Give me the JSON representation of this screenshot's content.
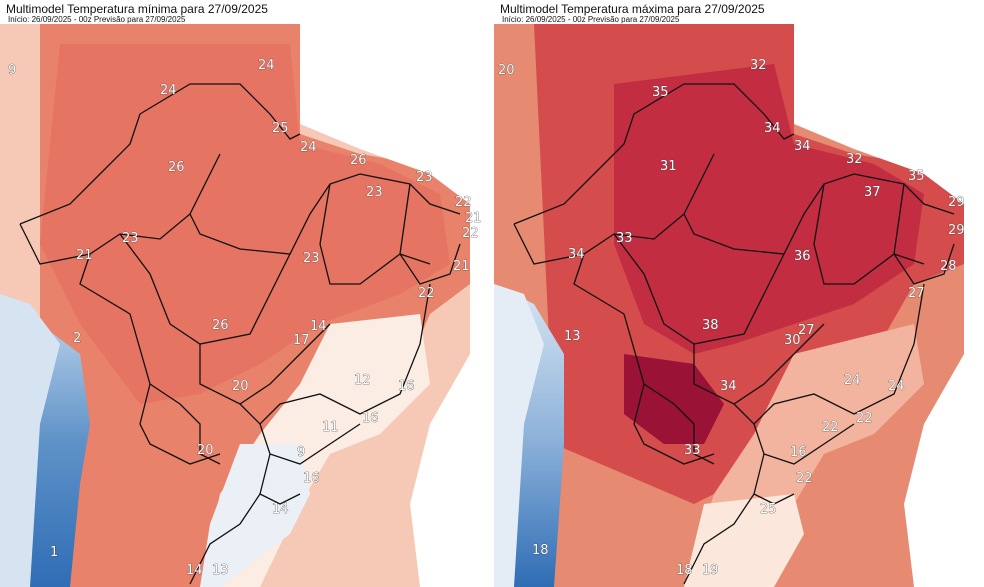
{
  "panels": [
    {
      "id": "min",
      "title": "Multimodel Temperatura mínima para 27/09/2025",
      "subtitle": "Início: 26/09/2025 - 00z  Previsão para 27/09/2025",
      "labels": [
        "9",
        "24",
        "24",
        "25",
        "24",
        "26",
        "26",
        "23",
        "23",
        "22",
        "21",
        "22",
        "23",
        "21",
        "21",
        "23",
        "22",
        "2",
        "14",
        "17",
        "26",
        "12",
        "16",
        "20",
        "11",
        "16",
        "20",
        "9",
        "16",
        "14",
        "1",
        "14",
        "13"
      ]
    },
    {
      "id": "max",
      "title": "Multimodel Temperatura máxima para 27/09/2025",
      "subtitle": "Início: 26/09/2025 - 00z  Previsão para 27/09/2025",
      "labels": [
        "20",
        "32",
        "35",
        "34",
        "34",
        "31",
        "32",
        "35",
        "37",
        "29",
        "29",
        "34",
        "33",
        "36",
        "28",
        "27",
        "13",
        "27",
        "30",
        "38",
        "34",
        "24",
        "24",
        "22",
        "22",
        "33",
        "16",
        "22",
        "25",
        "18",
        "18",
        "19"
      ]
    }
  ],
  "colors": {
    "cold": "#2f6db5",
    "cool": "#d8e6f3",
    "neutral": "#fbefe8",
    "warm": "#ef9a7c",
    "hot": "#dc5a4b",
    "veryhot": "#b81b3a",
    "border": "#111111"
  }
}
